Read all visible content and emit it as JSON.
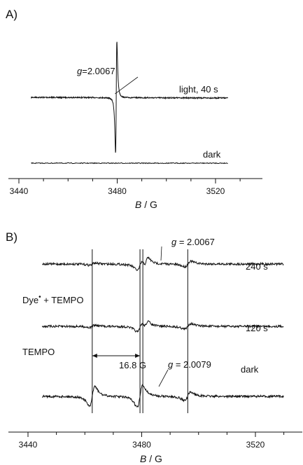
{
  "chart_data": [
    {
      "panel_label": "A)",
      "type": "line",
      "xlabel_italic": "B",
      "xlabel_rest": " / G",
      "xlim": [
        3445,
        3525
      ],
      "xticks": [
        3440,
        3480,
        3520
      ],
      "series": [
        {
          "name": "light, 40 s",
          "kind": "esr_single",
          "center": 3479.6,
          "amplitude": 1.0
        },
        {
          "name": "dark",
          "kind": "flat"
        }
      ],
      "annotations": [
        {
          "text_italic": "g",
          "text_rest": "=2.0067",
          "field": 3479.4
        }
      ]
    },
    {
      "panel_label": "B)",
      "type": "line",
      "xlabel_italic": "B",
      "xlabel_rest": " / G",
      "xlim": [
        3445,
        3530
      ],
      "xticks": [
        3440,
        3480,
        3520
      ],
      "series": [
        {
          "name": "240 s",
          "kind": "esr_triplet_plus_radical"
        },
        {
          "name": "120 s",
          "kind": "esr_triplet_plus_radical"
        },
        {
          "name": "dark",
          "kind": "esr_triplet"
        }
      ],
      "side_labels": {
        "dye": "Dye",
        "dye_dot": "•",
        "dye_rest": " + TEMPO",
        "tempo": "TEMPO"
      },
      "annotations": [
        {
          "text_italic": "g",
          "text_rest": " = 2.0067"
        },
        {
          "text_italic": "g",
          "text_rest": " = 2.0079"
        },
        {
          "text": "16.8 G",
          "from": 3462.6,
          "to": 3479.4
        }
      ],
      "vertical_lines": [
        3462.6,
        3479.4,
        3480.4,
        3496.2
      ]
    }
  ]
}
